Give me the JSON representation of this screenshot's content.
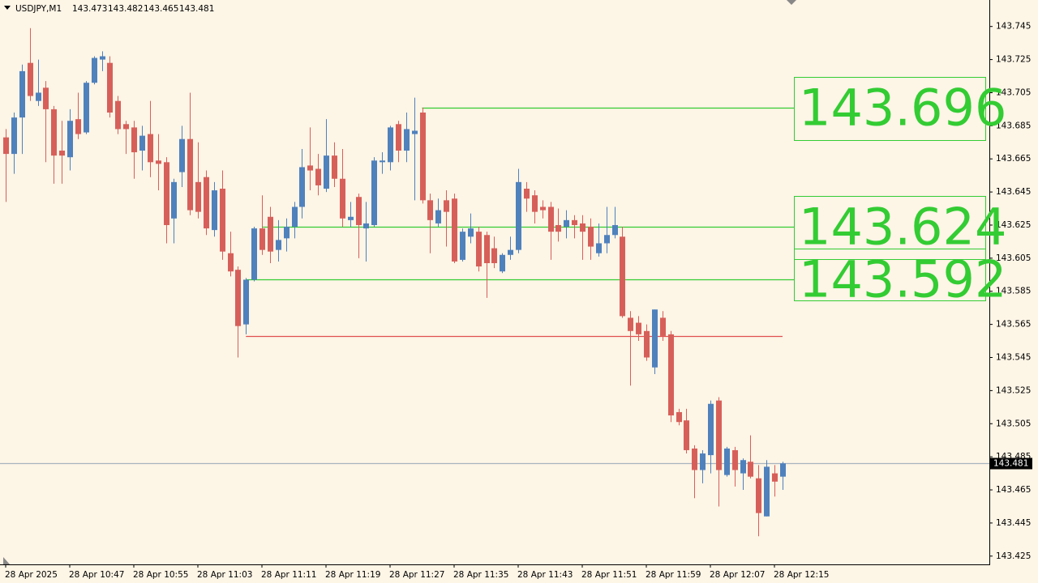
{
  "chart_data": {
    "type": "candlestick",
    "title": "USDJPY,M1",
    "categories": [
      "28 Apr 2025",
      null,
      null,
      null,
      null,
      null,
      null,
      null,
      "28 Apr 10:47",
      null,
      null,
      null,
      null,
      null,
      null,
      null,
      "28 Apr 10:55",
      null,
      null,
      null,
      null,
      null,
      null,
      null,
      "28 Apr 11:03",
      null,
      null,
      null,
      null,
      null,
      null,
      null,
      "28 Apr 11:11",
      null,
      null,
      null,
      null,
      null,
      null,
      null,
      "28 Apr 11:19",
      null,
      null,
      null,
      null,
      null,
      null,
      null,
      "28 Apr 11:27",
      null,
      null,
      null,
      null,
      null,
      null,
      null,
      "28 Apr 11:35",
      null,
      null,
      null,
      null,
      null,
      null,
      null,
      "28 Apr 11:43",
      null,
      null,
      null,
      null,
      null,
      null,
      null,
      "28 Apr 11:51",
      null,
      null,
      null,
      null,
      null,
      null,
      null,
      "28 Apr 11:59",
      null,
      null,
      null,
      null,
      null,
      null,
      null,
      "28 Apr 12:07",
      null,
      null,
      null,
      null,
      null,
      null,
      null,
      "28 Apr 12:15",
      null
    ],
    "open": [
      143.678,
      143.668,
      143.69,
      143.723,
      143.7,
      143.708,
      143.695,
      143.67,
      143.666,
      143.689,
      143.681,
      143.711,
      143.725,
      143.723,
      143.7,
      143.686,
      143.684,
      143.67,
      143.68,
      143.664,
      143.663,
      143.629,
      143.657,
      143.677,
      143.651,
      143.654,
      143.622,
      143.647,
      143.608,
      143.598,
      143.565,
      143.592,
      143.623,
      143.63,
      143.61,
      143.617,
      143.624,
      143.636,
      143.661,
      143.659,
      143.647,
      143.667,
      143.653,
      143.628,
      143.642,
      143.623,
      143.625,
      143.663,
      143.663,
      143.686,
      143.67,
      143.68,
      143.693,
      143.64,
      143.626,
      143.64,
      143.641,
      143.604,
      143.618,
      143.621,
      143.619,
      143.611,
      143.597,
      143.607,
      143.61,
      143.647,
      143.643,
      143.636,
      143.636,
      143.625,
      143.624,
      143.628,
      143.626,
      143.624,
      143.608,
      143.614,
      143.619,
      143.618,
      143.569,
      143.566,
      143.561,
      143.539,
      143.569,
      143.559,
      143.512,
      143.507,
      143.49,
      143.477,
      143.486,
      143.519,
      143.474,
      143.489,
      143.475,
      143.482,
      143.472,
      143.449,
      143.475,
      143.473
    ],
    "high": [
      143.683,
      143.693,
      143.722,
      143.744,
      143.725,
      143.712,
      143.697,
      143.688,
      143.695,
      143.705,
      143.712,
      143.727,
      143.73,
      143.727,
      143.703,
      143.688,
      143.688,
      143.685,
      143.7,
      143.68,
      143.666,
      143.653,
      143.685,
      143.705,
      143.675,
      143.658,
      143.651,
      143.658,
      143.621,
      143.6,
      143.593,
      143.624,
      143.643,
      143.636,
      143.628,
      143.629,
      143.639,
      143.671,
      143.684,
      143.668,
      143.689,
      143.675,
      143.671,
      143.639,
      143.644,
      143.639,
      143.666,
      143.669,
      143.685,
      143.688,
      143.693,
      143.702,
      143.696,
      143.644,
      143.641,
      143.646,
      143.644,
      143.623,
      143.632,
      143.624,
      143.621,
      143.618,
      143.608,
      143.618,
      143.659,
      143.651,
      143.646,
      143.64,
      143.639,
      143.635,
      143.634,
      143.631,
      143.631,
      143.629,
      143.626,
      143.636,
      143.636,
      143.624,
      143.573,
      143.57,
      143.565,
      143.574,
      143.573,
      143.561,
      143.514,
      143.514,
      143.492,
      143.489,
      143.519,
      143.521,
      143.491,
      143.491,
      143.484,
      143.498,
      143.48,
      143.483,
      143.48,
      143.482
    ],
    "low": [
      143.639,
      143.656,
      143.668,
      143.7,
      143.697,
      143.663,
      143.65,
      143.65,
      143.658,
      143.677,
      143.68,
      143.71,
      143.718,
      143.69,
      143.68,
      143.668,
      143.653,
      143.658,
      143.654,
      143.646,
      143.614,
      143.614,
      143.648,
      143.631,
      143.629,
      143.619,
      143.618,
      143.604,
      143.594,
      143.545,
      143.559,
      143.591,
      143.607,
      143.602,
      143.603,
      143.609,
      143.617,
      143.629,
      143.646,
      143.643,
      143.645,
      143.648,
      143.624,
      143.624,
      143.605,
      143.603,
      143.624,
      143.656,
      143.658,
      143.663,
      143.663,
      143.64,
      143.638,
      143.608,
      143.624,
      143.612,
      143.602,
      143.603,
      143.614,
      143.597,
      143.581,
      143.599,
      143.596,
      143.604,
      143.608,
      143.633,
      143.626,
      143.629,
      143.604,
      143.615,
      143.617,
      143.617,
      143.604,
      143.604,
      143.606,
      143.608,
      143.617,
      143.569,
      143.528,
      143.555,
      143.543,
      143.535,
      143.555,
      143.506,
      143.504,
      143.487,
      143.46,
      143.469,
      143.475,
      143.455,
      143.473,
      143.467,
      143.465,
      143.472,
      143.437,
      143.449,
      143.461,
      143.465
    ],
    "close": [
      143.668,
      143.69,
      143.718,
      143.703,
      143.705,
      143.695,
      143.667,
      143.667,
      143.688,
      143.68,
      143.711,
      143.726,
      143.727,
      143.693,
      143.683,
      143.683,
      143.669,
      143.679,
      143.663,
      143.662,
      143.625,
      143.651,
      143.677,
      143.634,
      143.633,
      143.623,
      143.646,
      143.609,
      143.597,
      143.564,
      143.592,
      143.623,
      143.61,
      143.609,
      143.616,
      143.624,
      143.636,
      143.66,
      143.658,
      143.649,
      143.667,
      143.653,
      143.629,
      143.63,
      143.625,
      143.626,
      143.664,
      143.664,
      143.684,
      143.67,
      143.683,
      143.682,
      143.64,
      143.628,
      143.634,
      143.633,
      143.603,
      143.621,
      143.623,
      143.6,
      143.602,
      143.602,
      143.607,
      143.61,
      143.651,
      143.641,
      143.633,
      143.634,
      143.621,
      143.621,
      143.628,
      143.625,
      143.621,
      143.612,
      143.614,
      143.619,
      143.625,
      143.57,
      143.561,
      143.559,
      143.545,
      143.574,
      143.558,
      143.51,
      143.506,
      143.489,
      143.477,
      143.487,
      143.517,
      143.477,
      143.49,
      143.477,
      143.483,
      143.473,
      143.451,
      143.479,
      143.47,
      143.481
    ],
    "up_color": "#4f81bd",
    "down_color": "#d75f5a",
    "levels": [
      {
        "value": 143.696,
        "color": "#33cc33"
      },
      {
        "value": 143.624,
        "color": "#33cc33"
      },
      {
        "value": 143.592,
        "color": "#33cc33"
      },
      {
        "value": 143.558,
        "color": "#e05050"
      }
    ],
    "ylim": [
      143.42,
      143.761
    ],
    "yticks": [
      143.745,
      143.725,
      143.705,
      143.685,
      143.665,
      143.645,
      143.625,
      143.605,
      143.585,
      143.565,
      143.545,
      143.525,
      143.505,
      143.485,
      143.465,
      143.445,
      143.425
    ]
  }
}
